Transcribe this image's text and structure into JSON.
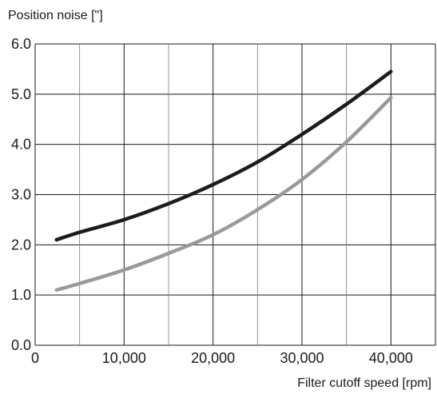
{
  "chart_data": {
    "type": "line",
    "title": "",
    "ylabel": "Position noise [\"]",
    "xlabel": "Filter cutoff speed [rpm]",
    "xlim": [
      0,
      45000
    ],
    "ylim": [
      0.0,
      6.0
    ],
    "grid": true,
    "x_ticks": [
      0,
      10000,
      20000,
      30000,
      40000
    ],
    "x_tick_labels": [
      "0",
      "10,000",
      "20,000",
      "30,000",
      "40,000"
    ],
    "y_ticks": [
      0,
      1,
      2,
      3,
      4,
      5,
      6
    ],
    "y_tick_labels": [
      "0.0",
      "1.0",
      "2.0",
      "3.0",
      "4.0",
      "5.0",
      "6.0"
    ],
    "x_minor_grid": [
      5000,
      15000,
      25000,
      35000
    ],
    "series": [
      {
        "color": "#1c1c1c",
        "x": [
          2400,
          5000,
          10000,
          15000,
          20000,
          25000,
          30000,
          35000,
          40000
        ],
        "y": [
          2.1,
          2.25,
          2.5,
          2.82,
          3.2,
          3.65,
          4.2,
          4.8,
          5.45
        ]
      },
      {
        "color": "#9a9a9a",
        "x": [
          2400,
          5000,
          10000,
          15000,
          20000,
          25000,
          30000,
          35000,
          40000
        ],
        "y": [
          1.1,
          1.23,
          1.5,
          1.83,
          2.2,
          2.7,
          3.3,
          4.05,
          4.93
        ]
      }
    ]
  }
}
